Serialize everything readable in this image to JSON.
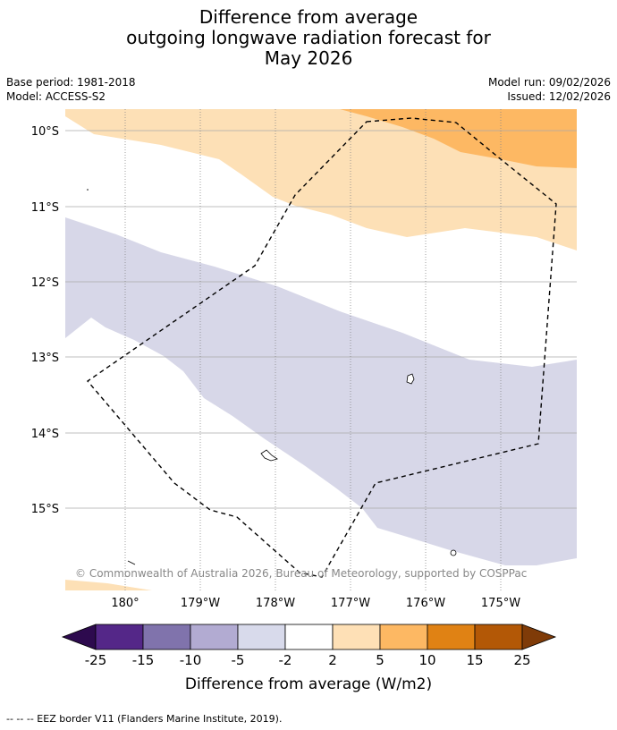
{
  "header": {
    "title_lines": [
      "Difference from average",
      "outgoing longwave radiation forecast for",
      "May 2026"
    ],
    "base_period": "Base period: 1981-2018",
    "model": "Model: ACCESS-S2",
    "model_run": "Model run: 09/02/2026",
    "issued": "Issued: 12/02/2026"
  },
  "map": {
    "lat_labels": [
      "10°S",
      "11°S",
      "12°S",
      "13°S",
      "14°S",
      "15°S"
    ],
    "lon_labels": [
      "180°",
      "179°W",
      "178°W",
      "177°W",
      "176°W",
      "175°W"
    ],
    "copyright": "© Commonwealth of Australia 2026, Bureau of Meteorology, supported by COSPPac",
    "colors": {
      "light_purple": "#d7d7e8",
      "light_orange": "#fde0b6",
      "mid_orange": "#fdb863"
    }
  },
  "legend": {
    "ticks": [
      "-25",
      "-15",
      "-10",
      "-5",
      "-2",
      "2",
      "5",
      "10",
      "15",
      "25"
    ],
    "colors": [
      "#2d0a4e",
      "#542788",
      "#8073ac",
      "#b2abd2",
      "#d8daeb",
      "#ffffff",
      "#fee0b6",
      "#fdb863",
      "#e08214",
      "#b35806",
      "#7f3b08"
    ],
    "label": "Difference from average (W/m2)"
  },
  "footnote": "--  --  -- EEZ border V11 (Flanders Marine Institute, 2019)."
}
